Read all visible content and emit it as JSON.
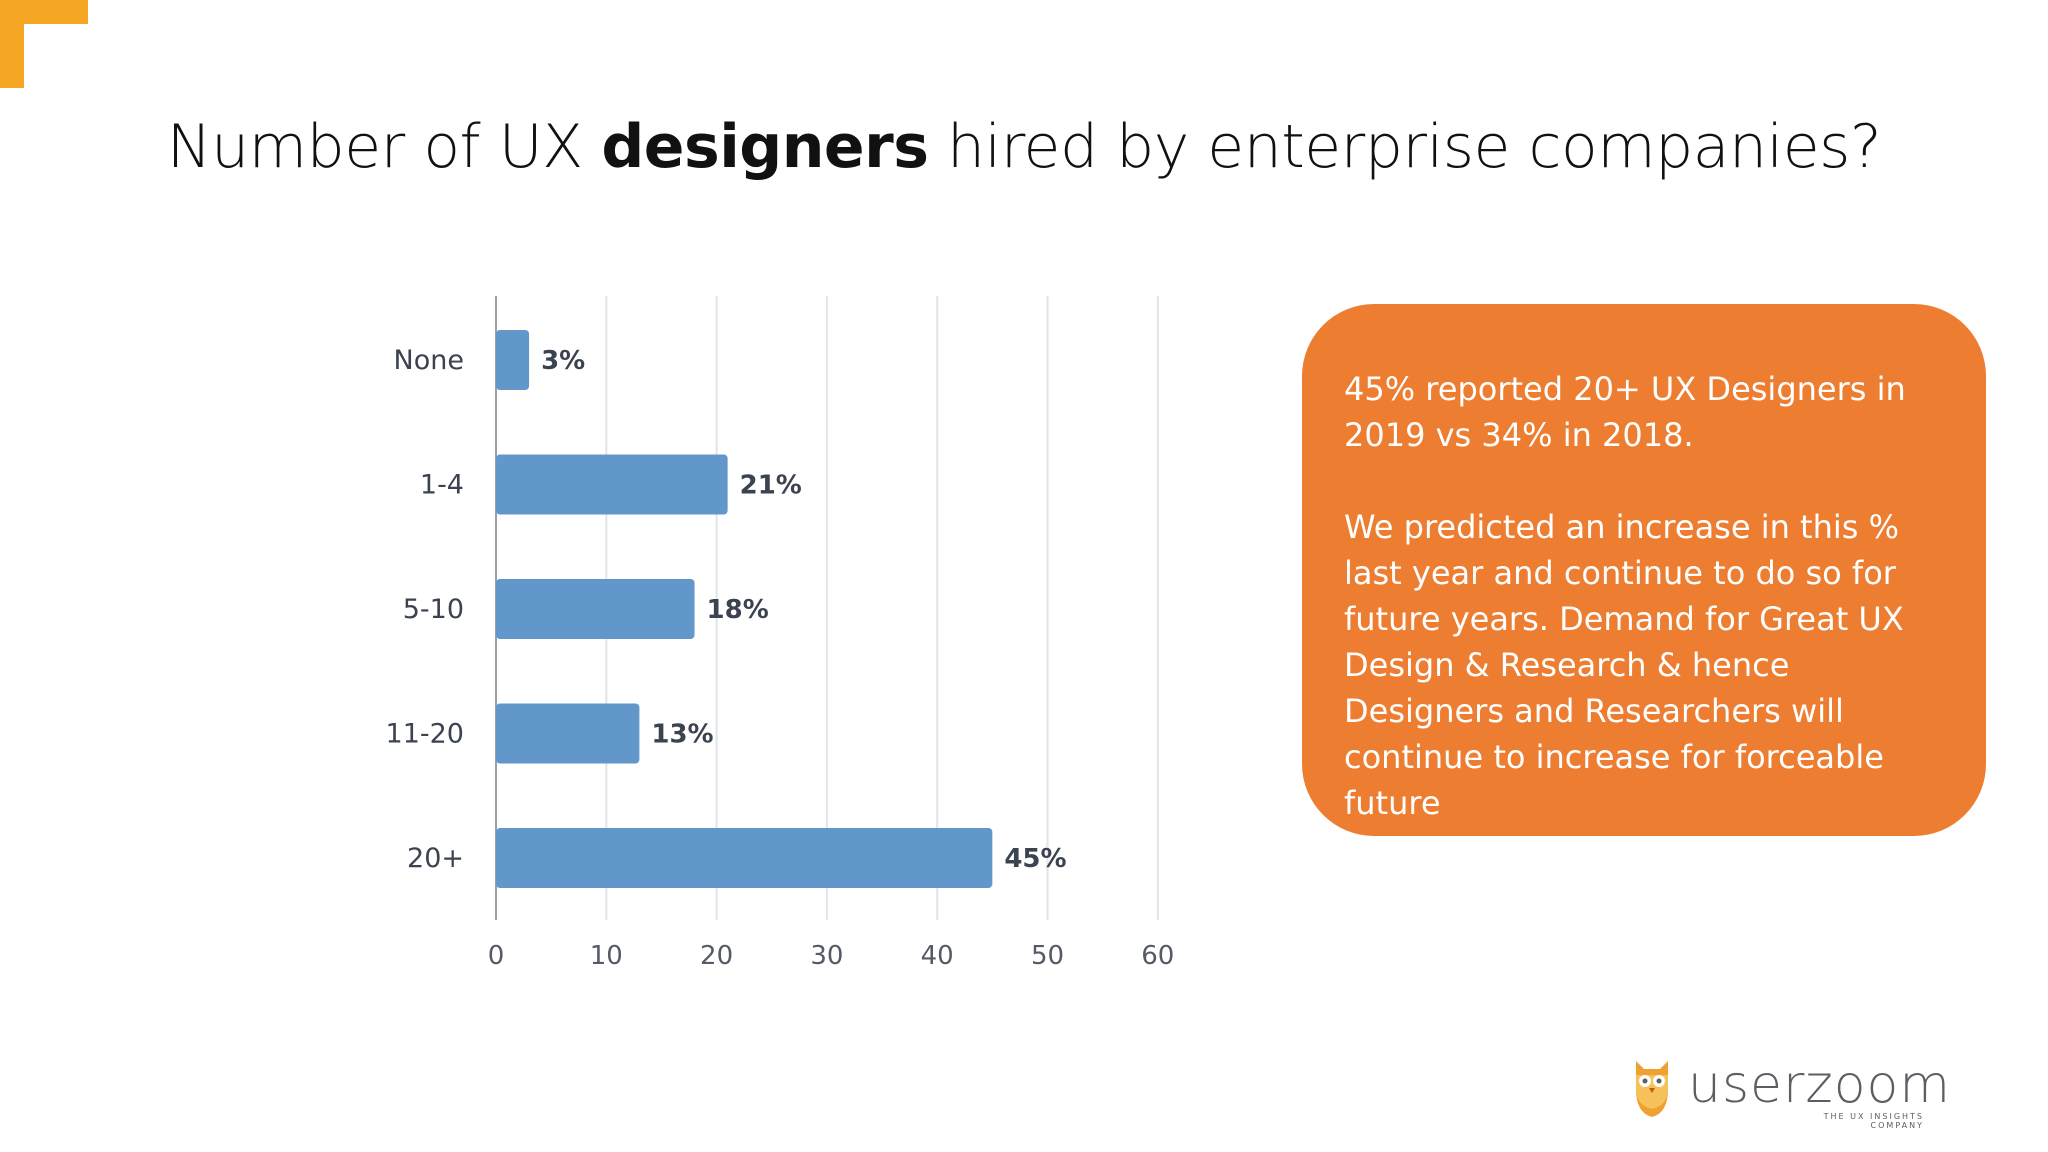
{
  "slide": {
    "title_before": "Number of UX ",
    "title_emphasis": "designers",
    "title_after": " hired by enterprise companies?",
    "accent_color": "#f5a623"
  },
  "chart_data": {
    "type": "bar",
    "orientation": "horizontal",
    "categories": [
      "None",
      "1-4",
      "5-10",
      "11-20",
      "20+"
    ],
    "values": [
      3,
      21,
      18,
      13,
      45
    ],
    "data_labels": [
      "3%",
      "21%",
      "18%",
      "13%",
      "45%"
    ],
    "xlim": [
      0,
      100
    ],
    "xticks": [
      0,
      10,
      20,
      30,
      40,
      50,
      60,
      70,
      80,
      90,
      100
    ],
    "grid": true,
    "bar_color": "#6197cb",
    "title": "",
    "xlabel": "",
    "ylabel": ""
  },
  "callout": {
    "paragraph_1": "45% reported 20+ UX Designers in 2019 vs 34% in 2018.",
    "paragraph_2": "We predicted an increase in this % last year and continue to do so for future years. Demand for Great UX Design & Research & hence Designers and Researchers will continue to increase for forceable future",
    "background_color": "#ed7d31"
  },
  "logo": {
    "name": "userzoom",
    "tagline": "THE UX INSIGHTS COMPANY",
    "icon": "owl-icon"
  }
}
